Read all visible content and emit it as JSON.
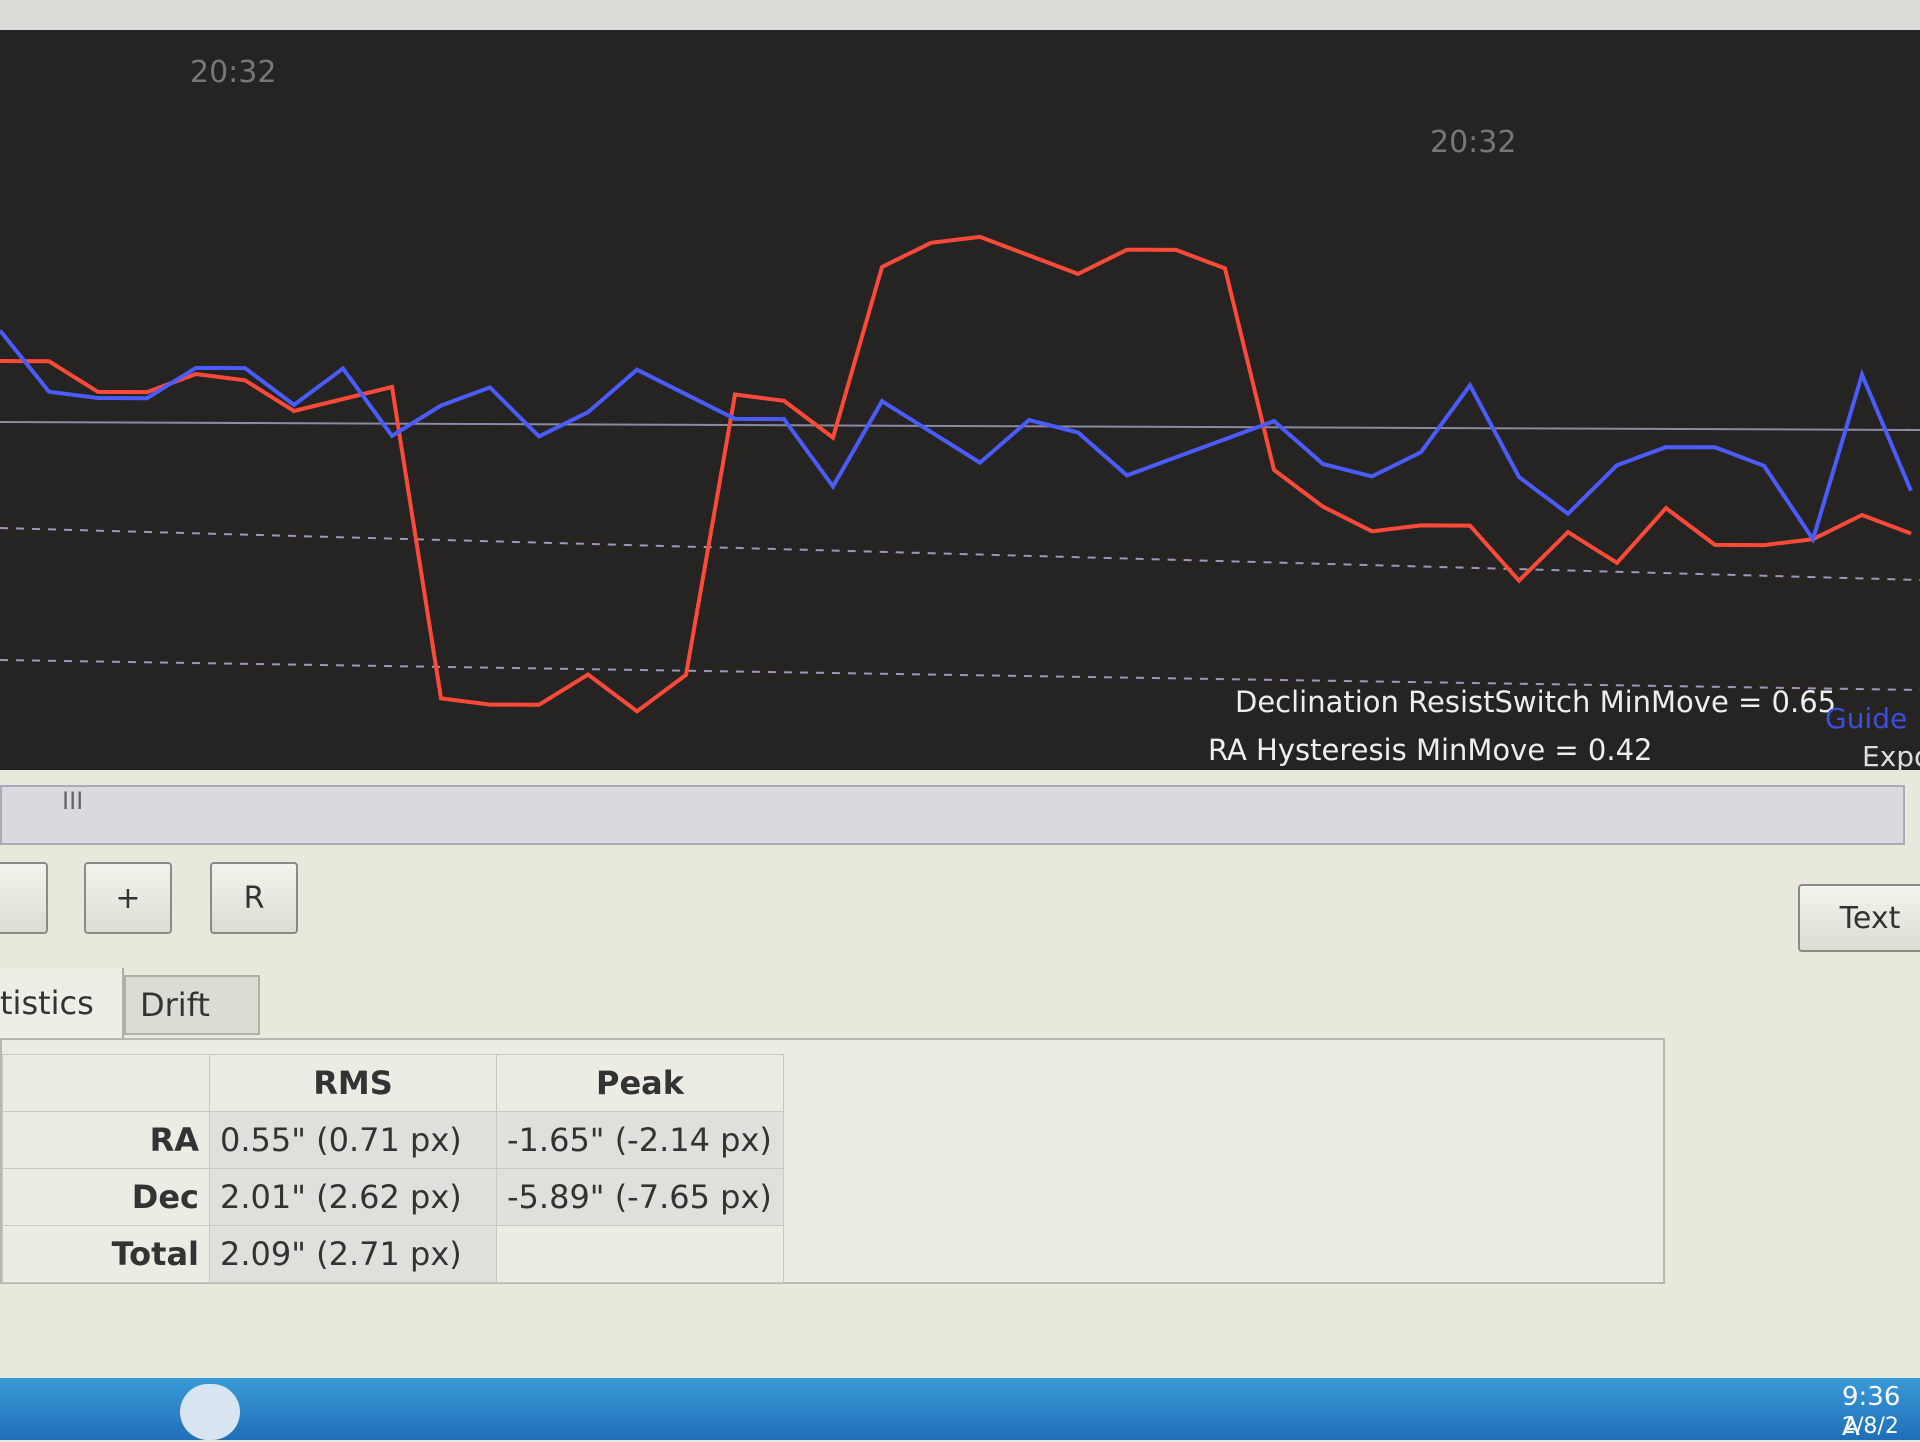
{
  "graph": {
    "time_labels": [
      "20:32",
      "20:32"
    ],
    "notes": [
      "Declination ResistSwitch MinMove = 0.65",
      "RA Hysteresis MinMove = 0.42"
    ],
    "cut_labels": [
      "Guide",
      "Expo"
    ],
    "dec": {
      "color": "#ff4a3a",
      "values": [
        1.0,
        1.0,
        0.5,
        0.5,
        0.8,
        0.7,
        0.2,
        0.4,
        0.6,
        -4.5,
        -4.6,
        -4.6,
        -4.1,
        -4.7,
        -4.1,
        0.5,
        0.4,
        -0.2,
        2.6,
        3.0,
        3.1,
        2.8,
        2.5,
        2.9,
        2.9,
        2.6,
        -0.7,
        -1.3,
        -1.7,
        -1.6,
        -1.6,
        -2.5,
        -1.7,
        -2.2,
        -1.3,
        -1.9,
        -1.9,
        -1.8,
        -1.4,
        -1.7
      ]
    },
    "ra": {
      "color": "#4a5cff",
      "values": [
        1.5,
        0.5,
        0.4,
        0.4,
        0.9,
        0.9,
        0.3,
        0.9,
        -0.2,
        0.3,
        0.6,
        -0.2,
        0.2,
        0.9,
        0.5,
        0.1,
        0.1,
        -1.0,
        0.4,
        -0.1,
        -0.6,
        0.1,
        -0.1,
        -0.8,
        -0.5,
        -0.2,
        0.1,
        -0.6,
        -0.8,
        -0.4,
        0.7,
        -0.8,
        -1.4,
        -0.6,
        -0.3,
        -0.3,
        -0.6,
        -1.8,
        0.9,
        -1.0
      ]
    }
  },
  "scrollbar": "III",
  "buttons": [
    "+",
    "R",
    "Text"
  ],
  "tabs": [
    "tistics",
    "Drift"
  ],
  "table": {
    "header": [
      "RMS",
      "Peak"
    ],
    "rows": [
      [
        "RA",
        "0.55\" (0.71 px)",
        "-1.65\" (-2.14 px)"
      ],
      [
        "Dec",
        "2.01\" (2.62 px)",
        "-5.89\" (-7.65 px)"
      ],
      [
        "Total",
        "2.09\" (2.71 px)"
      ]
    ]
  },
  "taskbar": {
    "time": "9:36 A",
    "date": "2/8/2"
  }
}
